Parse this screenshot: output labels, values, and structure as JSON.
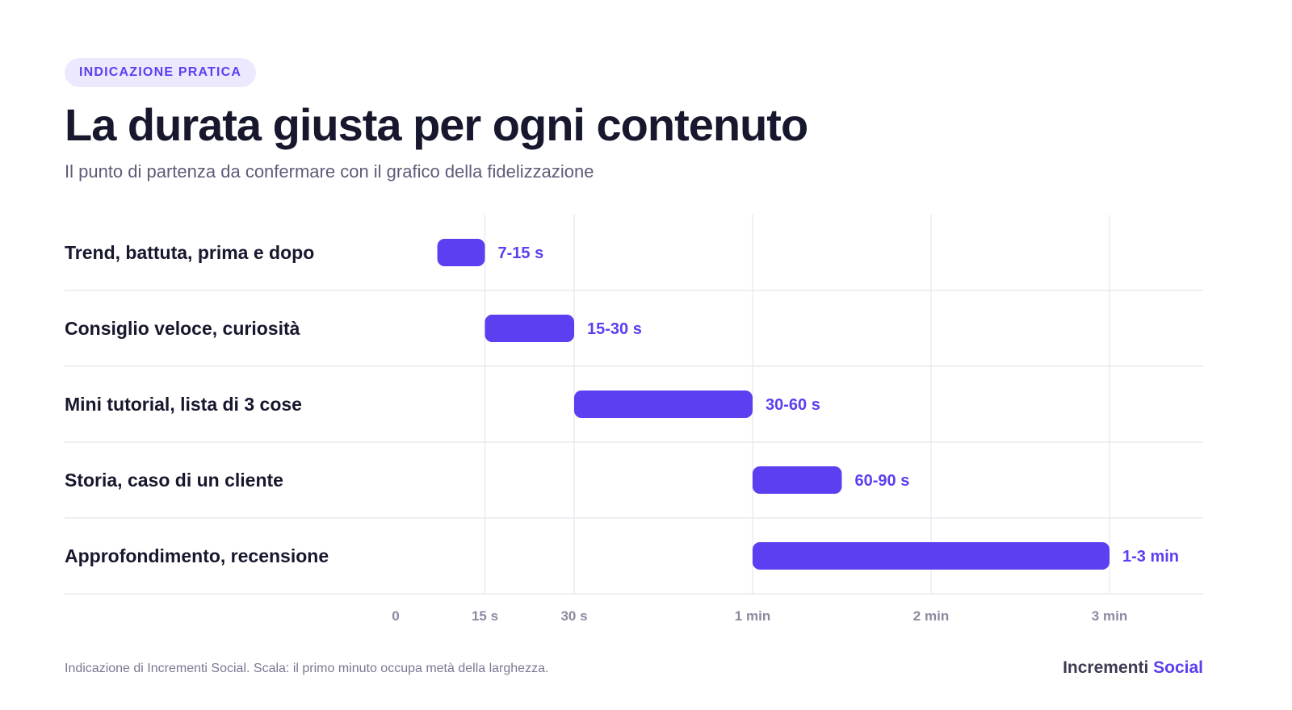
{
  "header": {
    "badge": "INDICAZIONE PRATICA",
    "title": "La durata giusta per ogni contenuto",
    "subtitle": "Il punto di partenza da confermare con il grafico della fidelizzazione"
  },
  "chart_data": {
    "type": "bar",
    "orientation": "horizontal-range",
    "x_unit": "seconds",
    "scale_note": "piecewise: first minute occupies half the axis width",
    "categories": [
      "Trend, battuta, prima e dopo",
      "Consiglio veloce, curiosità",
      "Mini tutorial, lista di 3 cose",
      "Storia, caso di un cliente",
      "Approfondimento, recensione"
    ],
    "ranges": [
      {
        "start": 7,
        "end": 15,
        "label": "7-15 s"
      },
      {
        "start": 15,
        "end": 30,
        "label": "15-30 s"
      },
      {
        "start": 30,
        "end": 60,
        "label": "30-60 s"
      },
      {
        "start": 60,
        "end": 90,
        "label": "60-90 s"
      },
      {
        "start": 60,
        "end": 180,
        "label": "1-3 min"
      }
    ],
    "ticks": [
      {
        "value": 0,
        "label": "0"
      },
      {
        "value": 15,
        "label": "15 s"
      },
      {
        "value": 30,
        "label": "30 s"
      },
      {
        "value": 60,
        "label": "1 min"
      },
      {
        "value": 120,
        "label": "2 min"
      },
      {
        "value": 180,
        "label": "3 min"
      }
    ],
    "xlim": [
      0,
      180
    ],
    "grid": true,
    "bar_color": "#5b3ff0"
  },
  "footer": {
    "note": "Indicazione di Incrementi Social. Scala: il primo minuto occupa metà della larghezza.",
    "brand_part1": "Incrementi",
    "brand_part2": "Social"
  }
}
